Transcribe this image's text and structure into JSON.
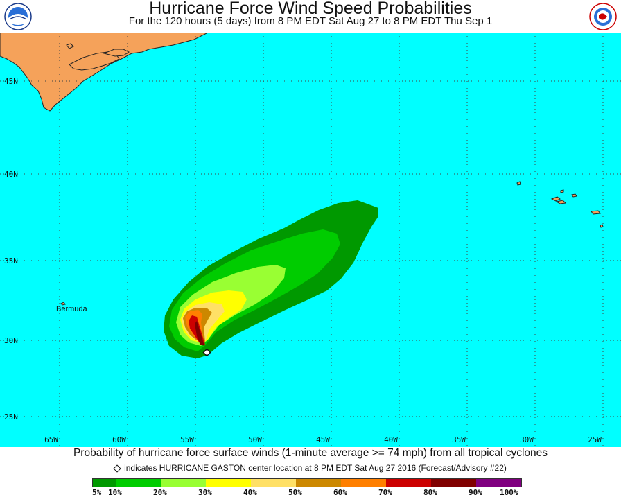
{
  "title": "Hurricane Force Wind Speed Probabilities",
  "subtitle": "For the 120 hours (5 days) from 8 PM EDT Sat Aug 27 to 8 PM EDT Thu Sep 1",
  "logos": {
    "left": "NOAA",
    "right": "NATIONAL WEATHER SERVICE"
  },
  "map": {
    "ocean_color": "#00ffff",
    "land_color": "#f5a25a",
    "place_label": "Bermuda",
    "lat_labels": [
      "45N",
      "40N",
      "35N",
      "30N",
      "25N"
    ],
    "lon_labels": [
      "65W",
      "60W",
      "55W",
      "50W",
      "45W",
      "40W",
      "35W",
      "30W",
      "25W"
    ]
  },
  "caption": "Probability of hurricane force surface winds (1-minute average >= 74 mph) from all tropical cyclones",
  "center_note": "indicates HURRICANE GASTON center location at 8 PM EDT Sat Aug 27 2016 (Forecast/Advisory #22)",
  "colorbar": {
    "colors": [
      "#009900",
      "#00cc00",
      "#99ff33",
      "#ffff00",
      "#ffe066",
      "#cc8800",
      "#ff7f00",
      "#cc0000",
      "#800000",
      "#800080"
    ],
    "labels": [
      "5%",
      "10%",
      "20%",
      "30%",
      "40%",
      "50%",
      "60%",
      "70%",
      "80%",
      "90%",
      "100%"
    ]
  }
}
